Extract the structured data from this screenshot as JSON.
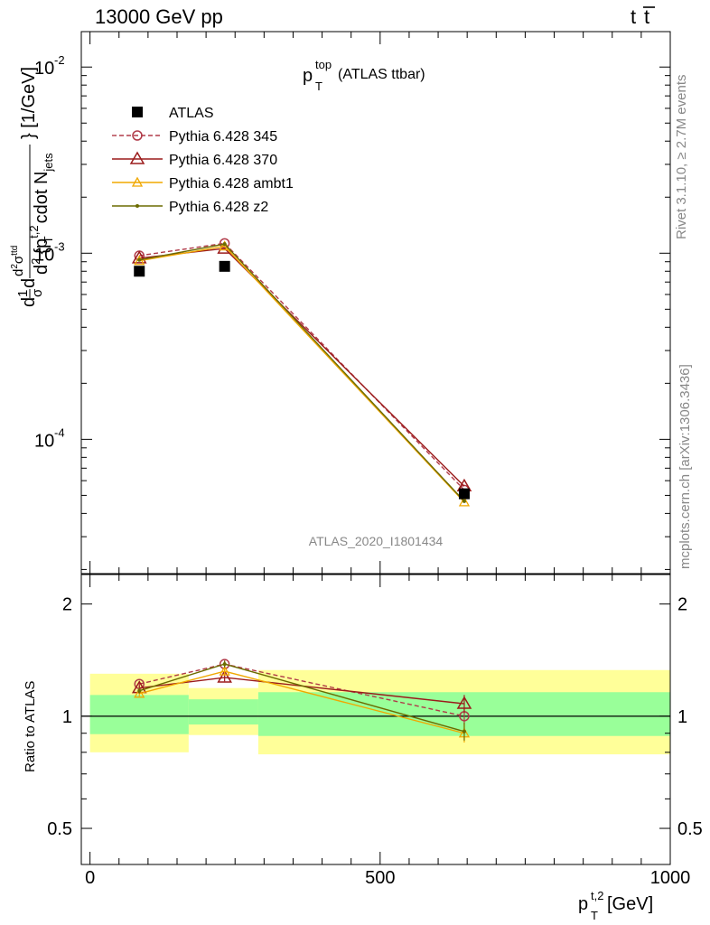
{
  "header": {
    "left": "13000 GeV pp",
    "right_main": "t",
    "right_bar": "t"
  },
  "side_labels": {
    "rivet": "Rivet 3.1.10, ≥ 2.7M events",
    "mcplots": "mcplots.cern.ch [arXiv:1306.3436]"
  },
  "chart_data": [
    {
      "type": "line",
      "title": {
        "main": "p",
        "sup": "top",
        "sub": "T",
        "suffix": " (ATLAS ttbar)"
      },
      "analysis_tag": "ATLAS_2020_I1801434",
      "ylabel": "d²σᵗᵗ/d²{pᵀᵗʲ cdot Nⱼₑₜₛ} [1/GeV]",
      "ylabel_parts": {
        "bracket": "} [1/GeV]",
        "cdot": "cdot N",
        "jets": "jets",
        "pT": "{p",
        "pTsup": "t,2",
        "pTsub": "T",
        "d2": "d",
        "two": "2",
        "dsig": "d",
        "sigma": "σ",
        "sig2": "2",
        "sigtt": "ttd",
        "one": "1",
        "dd": "d",
        "sg": "σ"
      },
      "yscale": "log",
      "ylim": [
        1.9e-05,
        0.0155
      ],
      "xlim": [
        -15,
        1000
      ],
      "y_ticks": [
        {
          "base": "10",
          "exp": "-2",
          "value": 0.01
        },
        {
          "base": "10",
          "exp": "-3",
          "value": 0.001
        },
        {
          "base": "10",
          "exp": "-4",
          "value": 0.0001
        }
      ],
      "legend": [
        {
          "name": "ATLAS",
          "color": "#000000",
          "marker": "square",
          "dash": false
        },
        {
          "name": "Pythia 6.428 345",
          "color": "#b03a48",
          "marker": "circle",
          "dash": true
        },
        {
          "name": "Pythia 6.428 370",
          "color": "#9b1b1b",
          "marker": "triangle",
          "dash": false
        },
        {
          "name": "Pythia 6.428 ambt1",
          "color": "#f0a800",
          "marker": "triangle-small",
          "dash": false
        },
        {
          "name": "Pythia 6.428 z2",
          "color": "#6b6b00",
          "marker": "dot",
          "dash": false
        }
      ],
      "x": [
        85,
        232,
        645
      ],
      "series": [
        {
          "name": "ATLAS",
          "values": [
            0.0008,
            0.00085,
            5.1e-05
          ]
        },
        {
          "name": "Pythia 6.428 345",
          "values": [
            0.00097,
            0.00113,
            5.35e-05
          ]
        },
        {
          "name": "Pythia 6.428 370",
          "values": [
            0.00094,
            0.00106,
            5.6e-05
          ]
        },
        {
          "name": "Pythia 6.428 ambt1",
          "values": [
            0.00091,
            0.00109,
            4.6e-05
          ]
        },
        {
          "name": "Pythia 6.428 z2",
          "values": [
            0.00092,
            0.00112,
            4.65e-05
          ]
        }
      ]
    },
    {
      "type": "line",
      "ylabel": "Ratio to ATLAS",
      "xlabel": {
        "main": "p",
        "sup": "t,2",
        "sub": "T",
        "unit": " [GeV]"
      },
      "yscale": "log",
      "ylim": [
        0.4,
        2.4
      ],
      "xlim": [
        -15,
        1000
      ],
      "y_ticks": [
        {
          "label": "2",
          "value": 2
        },
        {
          "label": "1",
          "value": 1
        },
        {
          "label": "0.5",
          "value": 0.5
        }
      ],
      "x_ticks": [
        {
          "label": "0",
          "value": 0
        },
        {
          "label": "500",
          "value": 500
        },
        {
          "label": "1000",
          "value": 1000
        }
      ],
      "bands": [
        {
          "x": [
            0,
            170
          ],
          "green": [
            0.895,
            1.14
          ],
          "yellow": [
            0.8,
            1.3
          ]
        },
        {
          "x": [
            170,
            290
          ],
          "green": [
            0.95,
            1.11
          ],
          "yellow": [
            0.89,
            1.19
          ]
        },
        {
          "x": [
            290,
            1000
          ],
          "green": [
            0.885,
            1.16
          ],
          "yellow": [
            0.79,
            1.33
          ]
        }
      ],
      "x": [
        85,
        232,
        645
      ],
      "series": [
        {
          "name": "Pythia 6.428 345",
          "values": [
            1.22,
            1.38,
            1.0
          ],
          "err": [
            0.02,
            0.03,
            0.05
          ]
        },
        {
          "name": "Pythia 6.428 370",
          "values": [
            1.19,
            1.27,
            1.08
          ],
          "err": [
            0.02,
            0.03,
            0.06
          ]
        },
        {
          "name": "Pythia 6.428 ambt1",
          "values": [
            1.15,
            1.32,
            0.9
          ],
          "err": [
            0.02,
            0.03,
            0.05
          ]
        },
        {
          "name": "Pythia 6.428 z2",
          "values": [
            1.17,
            1.38,
            0.91
          ],
          "err": [
            0.02,
            0.03,
            0.05
          ]
        }
      ]
    }
  ]
}
